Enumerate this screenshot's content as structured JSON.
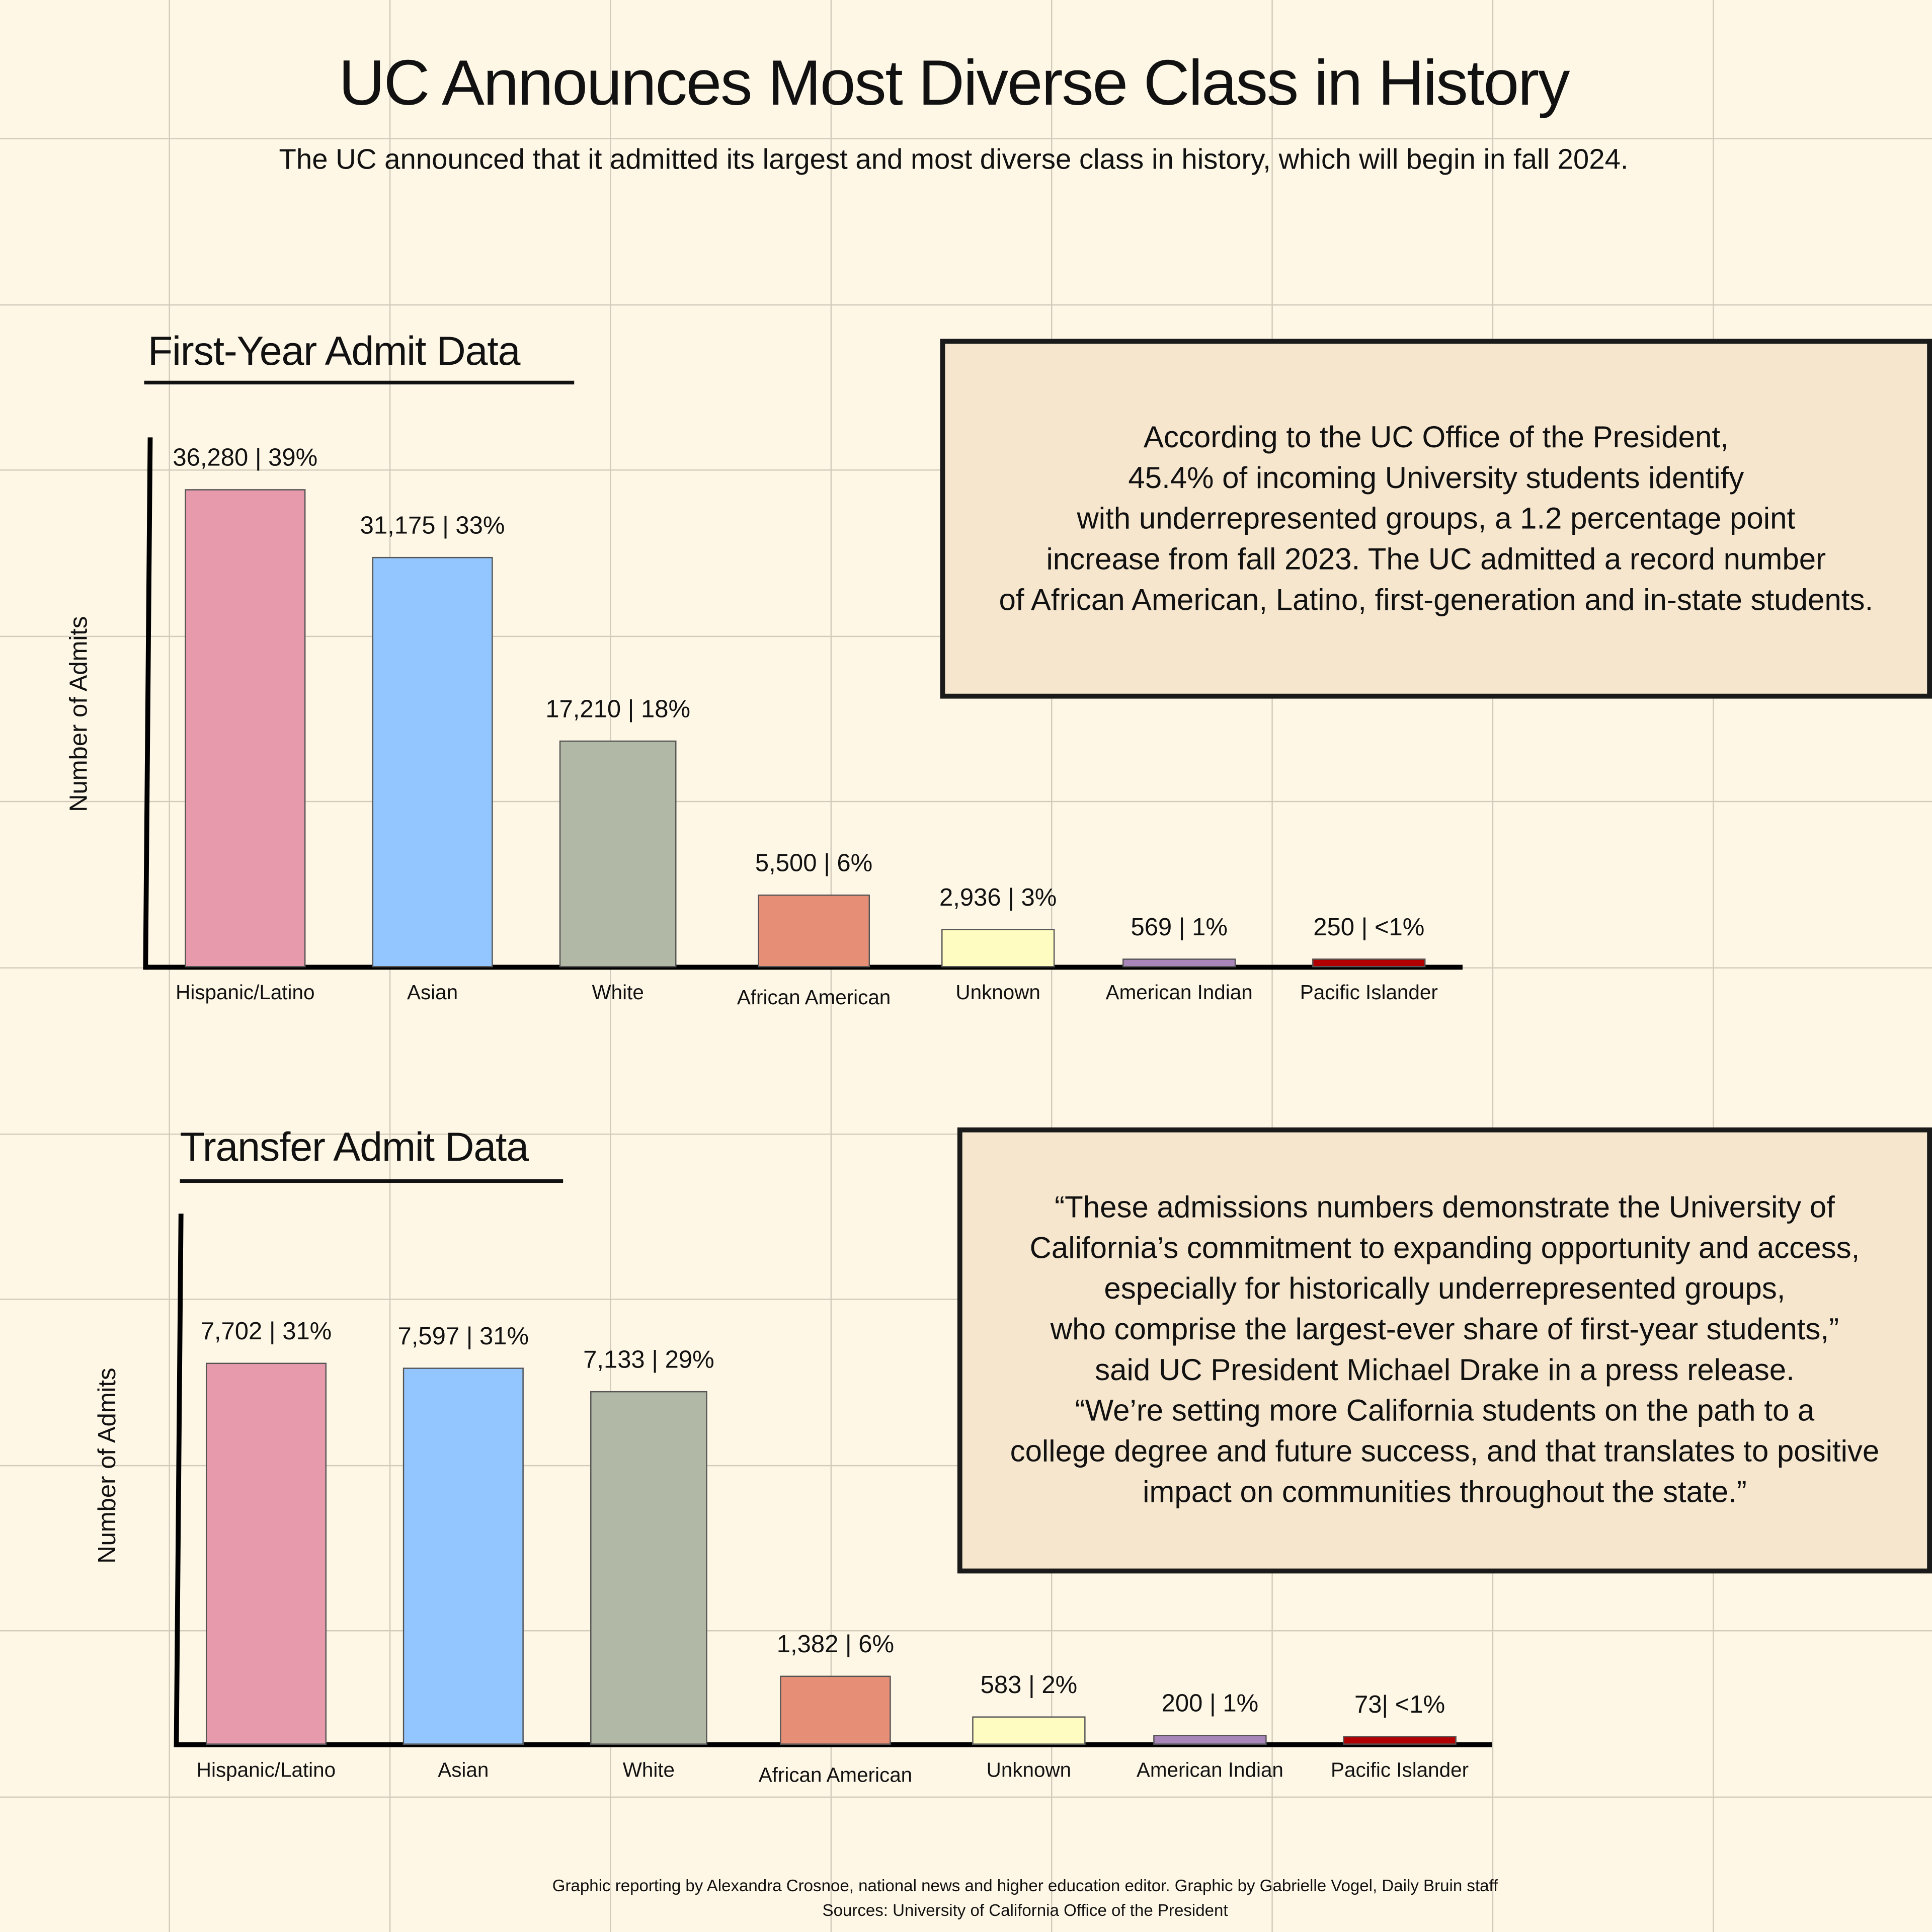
{
  "title": "UC Announces Most Diverse Class in History",
  "subtitle": "The UC announced that it admitted its largest and most diverse class in history, which will begin in fall 2024.",
  "colors": {
    "background": "#fef7e6",
    "grid": "#d2cbbb",
    "box": "#f6e6cd",
    "bars": [
      "#e69aab",
      "#93c5fe",
      "#b1b8a5",
      "#e68f76",
      "#fefcc0",
      "#a886ba",
      "#b20000"
    ]
  },
  "chart_data": [
    {
      "type": "bar",
      "title": "First-Year Admit Data",
      "ylabel": "Number of Admits",
      "xlabel": "",
      "categories": [
        "Hispanic/Latino",
        "Asian",
        "White",
        "African American",
        "Unknown",
        "American Indian",
        "Pacific Islander"
      ],
      "values": [
        36280,
        31175,
        17210,
        5500,
        2936,
        569,
        250
      ],
      "percents": [
        "39%",
        "33%",
        "18%",
        "6%",
        "3%",
        "1%",
        "<1%"
      ],
      "data_labels": [
        "36,280 | 39%",
        "31,175 | 33%",
        "17,210 | 18%",
        "5,500 | 6%",
        "2,936 | 3%",
        "569 | 1%",
        "250 | <1%"
      ],
      "grid": true
    },
    {
      "type": "bar",
      "title": "Transfer Admit Data",
      "ylabel": "Number of Admits",
      "xlabel": "",
      "categories": [
        "Hispanic/Latino",
        "Asian",
        "White",
        "African American",
        "Unknown",
        "American Indian",
        "Pacific Islander"
      ],
      "values": [
        7702,
        7597,
        7133,
        1382,
        583,
        200,
        73
      ],
      "percents": [
        "31%",
        "31%",
        "29%",
        "6%",
        "2%",
        "1%",
        "<1%"
      ],
      "data_labels": [
        "7,702 | 31%",
        "7,597 | 31%",
        "7,133 | 29%",
        "1,382 | 6%",
        "583 | 2%",
        "200 | 1%",
        "73| <1%"
      ],
      "grid": true
    }
  ],
  "info_box": "According to the UC Office of the President,\n45.4% of incoming University students identify\nwith underrepresented groups, a 1.2 percentage point\nincrease from fall 2023. The UC admitted a record number\nof African American, Latino, first-generation and in-state students.",
  "quote_box": "“These admissions numbers demonstrate the University of\nCalifornia’s commitment to expanding opportunity and access,\nespecially for historically underrepresented groups,\nwho comprise the largest-ever share of first-year students,”\nsaid UC President Michael Drake in a press release.\n“We’re setting more California students on the path to a\ncollege degree and future success, and that translates to positive\nimpact on communities throughout the state.”",
  "footer": {
    "credit": "Graphic reporting by Alexandra Crosnoe, national news and higher education editor. Graphic by Gabrielle Vogel, Daily Bruin staff",
    "sources": "Sources: University of California Office of the President"
  }
}
